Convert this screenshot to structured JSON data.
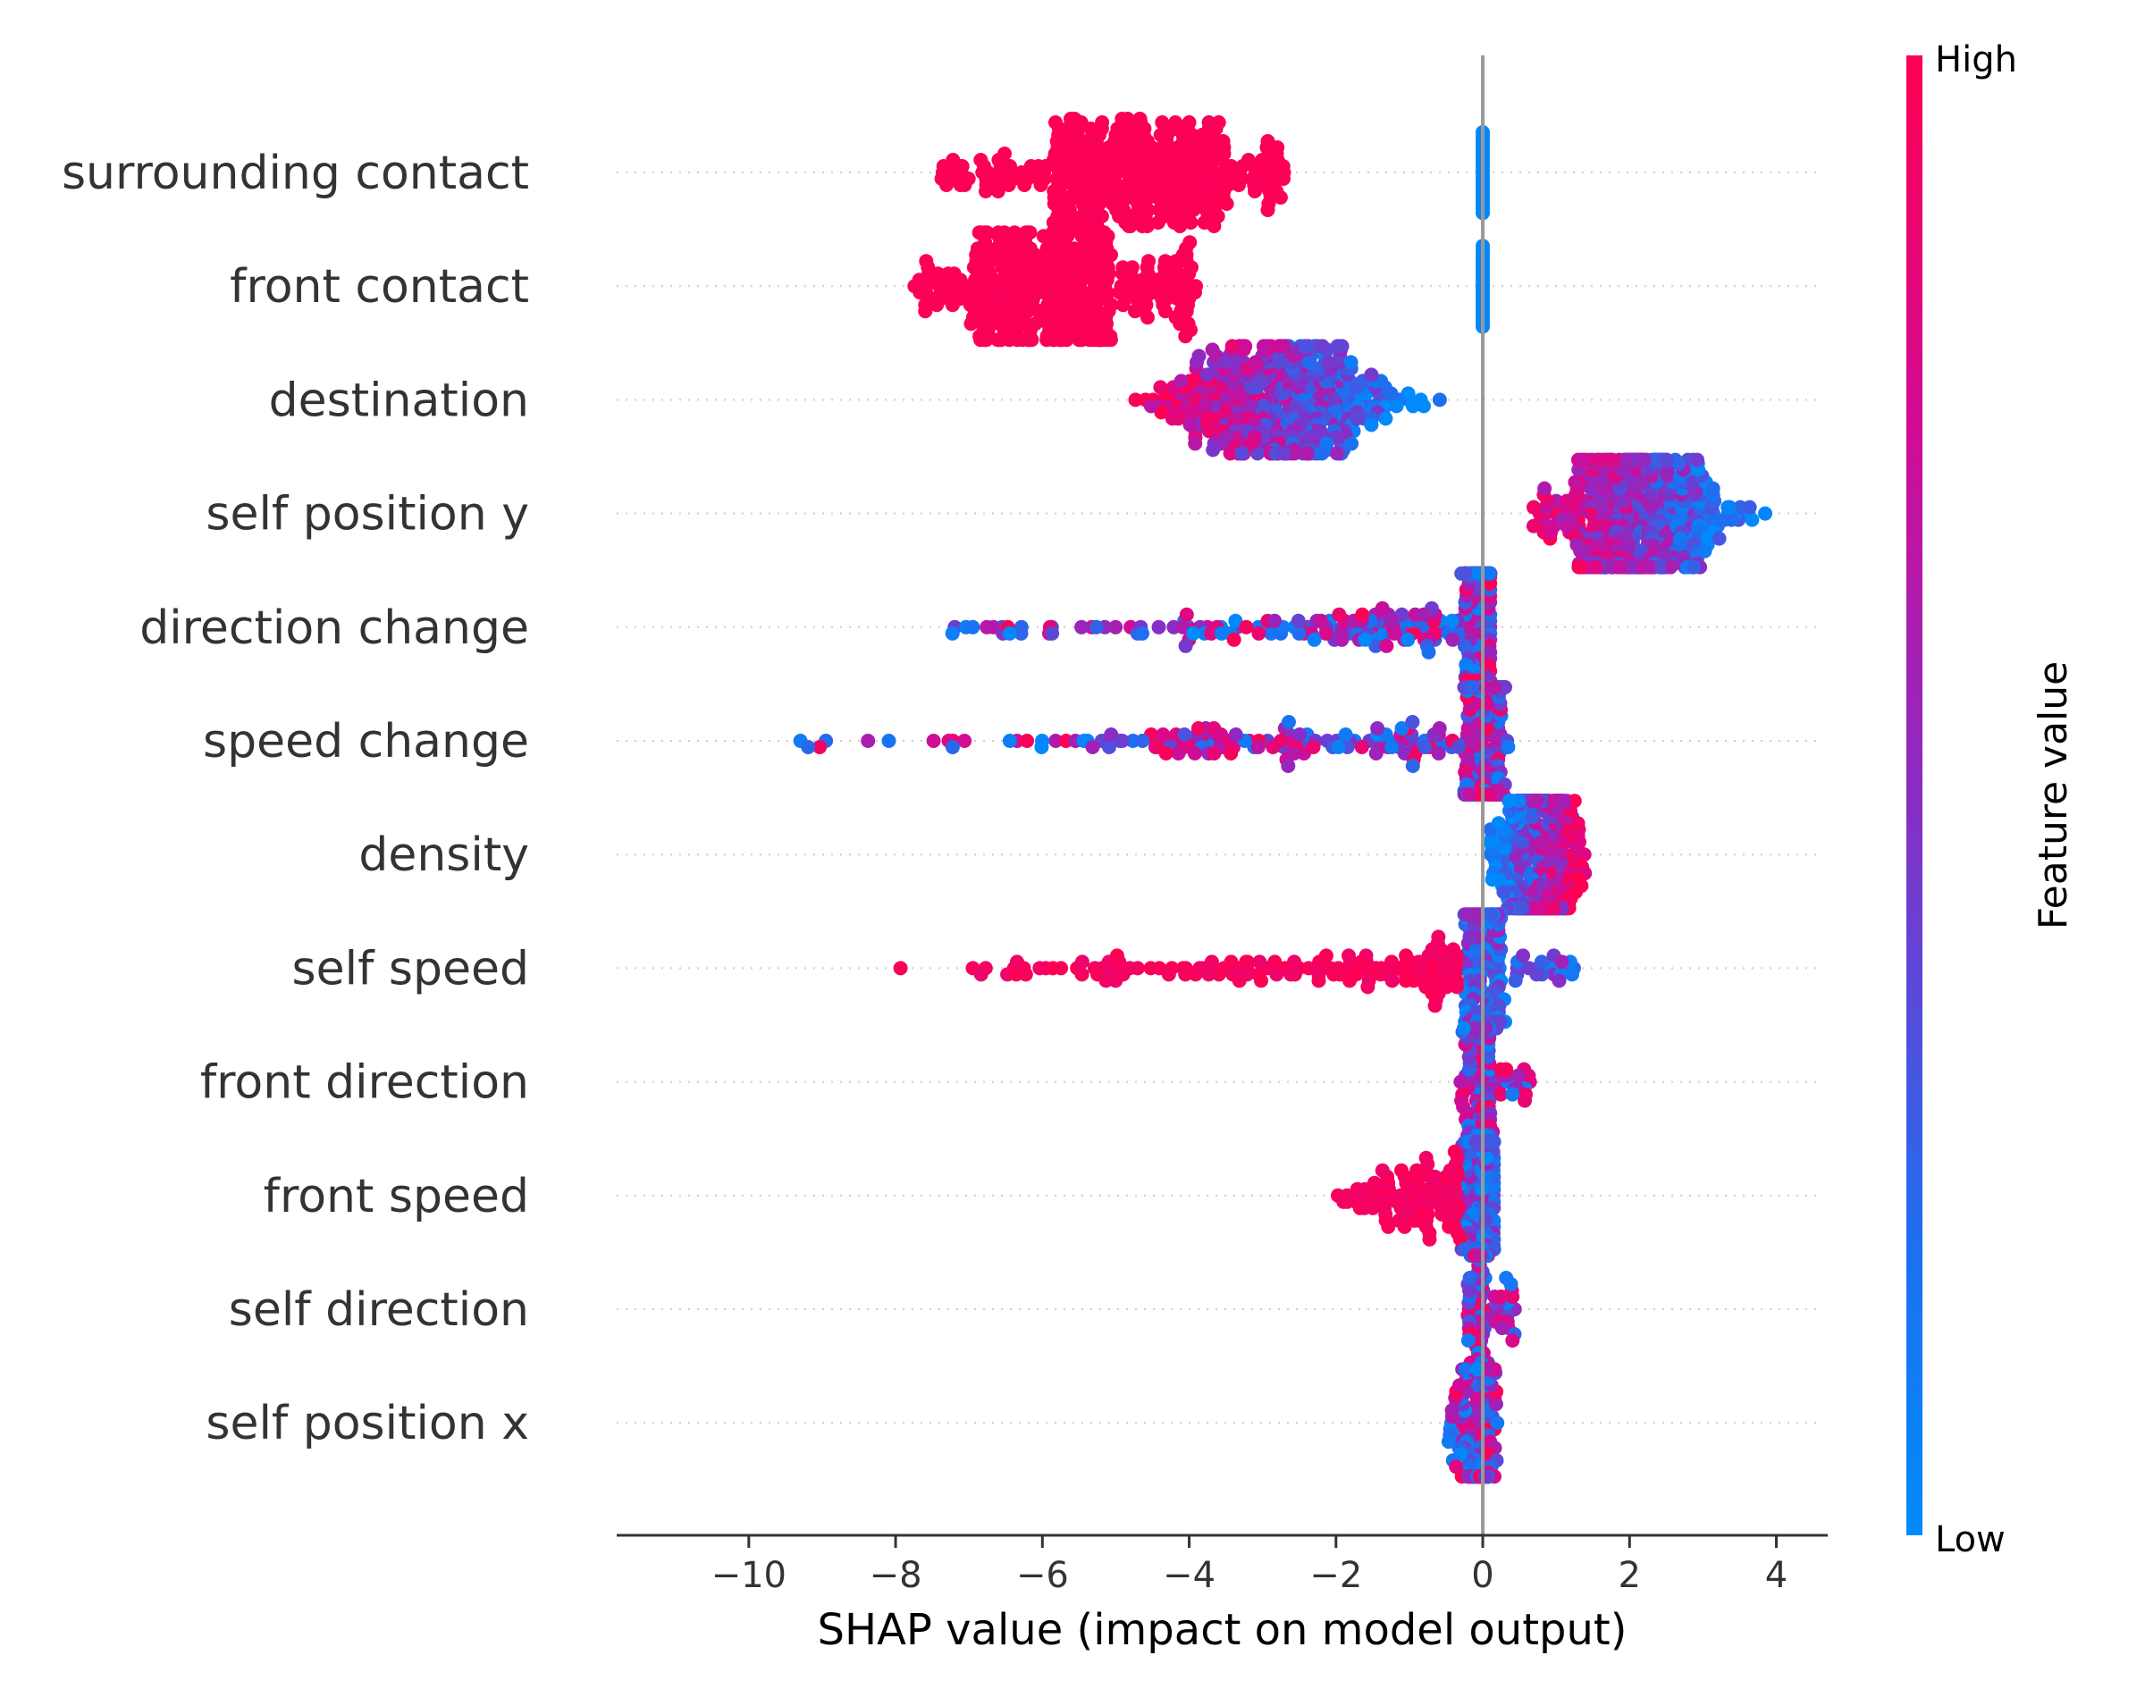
{
  "chart_data": {
    "type": "scatter",
    "subtype": "shap-beeswarm",
    "xlabel": "SHAP value (impact on model output)",
    "xlim": [
      -11.8,
      4.7
    ],
    "xticks": [
      -10,
      -8,
      -6,
      -4,
      -2,
      0,
      2,
      4
    ],
    "xtick_labels": [
      "−10",
      "−8",
      "−6",
      "−4",
      "−2",
      "0",
      "2",
      "4"
    ],
    "colorbar": {
      "title": "Feature value",
      "high_label": "High",
      "low_label": "Low",
      "high_color": "#ff0d57",
      "mid_color": "#9d21b8",
      "low_color": "#1e88e5"
    },
    "features": [
      {
        "name": "surrounding contact",
        "min": -7.4,
        "max": -2.7,
        "center": -4.7,
        "spread": 0.25,
        "zero_cluster": true
      },
      {
        "name": "front contact",
        "min": -7.8,
        "max": -3.9,
        "center": -6.0,
        "spread": 0.2,
        "zero_cluster": true
      },
      {
        "name": "destination",
        "min": -5.1,
        "max": -0.4,
        "center": -2.0,
        "spread": 0.7
      },
      {
        "name": "self position y",
        "min": 0.3,
        "max": 3.95,
        "center": 1.9,
        "spread": 0.7
      },
      {
        "name": "direction change",
        "min": -8.95,
        "max": 0.1,
        "center": 0.0,
        "spread": 0.45
      },
      {
        "name": "speed change",
        "min": -11.0,
        "max": 0.35,
        "center": 0.0,
        "spread": 0.5
      },
      {
        "name": "density",
        "min": 0.05,
        "max": 1.45,
        "center": 0.65,
        "spread": 0.55
      },
      {
        "name": "self speed",
        "min": -9.2,
        "max": 1.25,
        "center": 0.0,
        "spread": 0.4
      },
      {
        "name": "front direction",
        "min": -0.35,
        "max": 0.65,
        "center": 0.0,
        "spread": 0.5
      },
      {
        "name": "front speed",
        "min": -2.6,
        "max": 0.15,
        "center": 0.0,
        "spread": 0.5
      },
      {
        "name": "self direction",
        "min": -0.25,
        "max": 0.45,
        "center": 0.0,
        "spread": 0.5
      },
      {
        "name": "self position x",
        "min": -0.55,
        "max": 0.2,
        "center": 0.0,
        "spread": 0.5
      }
    ]
  }
}
